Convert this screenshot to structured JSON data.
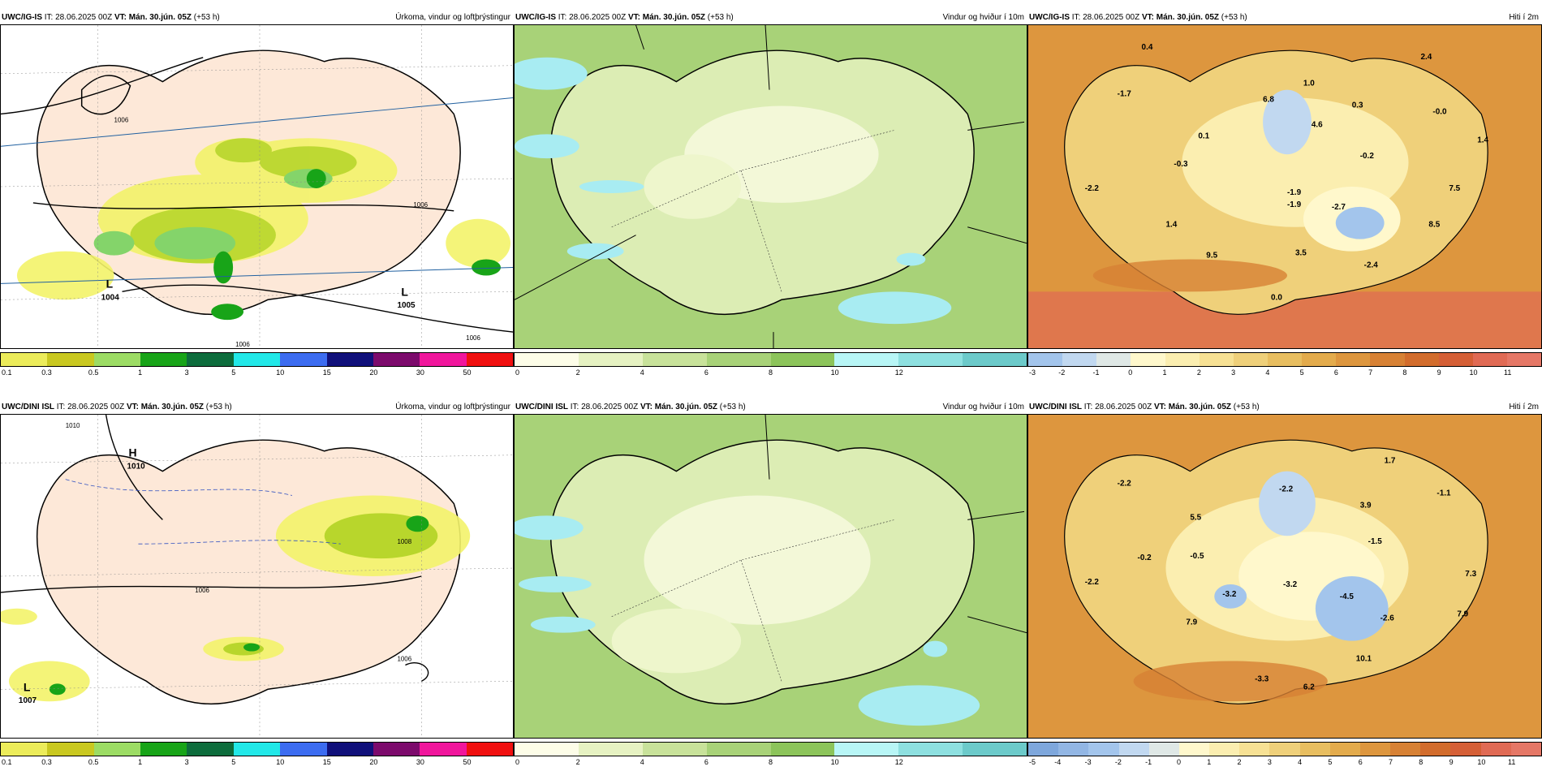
{
  "rows": [
    {
      "model": "UWC/IG-IS",
      "it_label": "IT:",
      "it": "28.06.2025 00Z",
      "vt_label": "VT:",
      "vt": "Mán. 30.jún. 05Z",
      "lead": "(+53 h)",
      "precip_title": "Úrkoma, vindur og loftþrýstingur",
      "wind_title": "Vindur og hviður í 10m",
      "temp_title": "Hiti í 2m",
      "lows": [
        {
          "symbol": "L",
          "value": "1004"
        },
        {
          "symbol": "L",
          "value": "1005"
        }
      ],
      "isobars": [
        "1006",
        "1006",
        "1006",
        "1006"
      ],
      "temps": [
        "0.4",
        "2.4",
        "-1.7",
        "1.0",
        "6.8",
        "0.3",
        "-1.9",
        "4.6",
        "-0.0",
        "0.1",
        "1.4",
        "-0.3",
        "-0.2",
        "-2.2",
        "-1.9",
        "7.5",
        "-2.7",
        "1.4",
        "8.5",
        "3.5",
        "9.5",
        "-2.4",
        "0.0"
      ],
      "temp_ticks": [
        "-3",
        "-2",
        "-1",
        "0",
        "1",
        "2",
        "3",
        "4",
        "5",
        "6",
        "7",
        "8",
        "9",
        "10",
        "11"
      ],
      "temp_colors": [
        "#a3c5ec",
        "#c1d8f0",
        "#dfe8e6",
        "#fff8cc",
        "#fbeeb0",
        "#f7e194",
        "#efd07a",
        "#e8be60",
        "#e3ab4c",
        "#dd963e",
        "#d78134",
        "#d26c2c",
        "#d55f36",
        "#e06a54",
        "#e57766"
      ]
    },
    {
      "model": "UWC/DINI ISL",
      "it_label": "IT:",
      "it": "28.06.2025 00Z",
      "vt_label": "VT:",
      "vt": "Mán. 30.jún. 05Z",
      "lead": "(+53 h)",
      "precip_title": "Úrkoma, vindur og loftþrýstingur",
      "wind_title": "Vindur og hviður í 10m",
      "temp_title": "Hiti í 2m",
      "lows": [
        {
          "symbol": "L",
          "value": "1007"
        }
      ],
      "highs": [
        {
          "symbol": "H",
          "value": "1010"
        }
      ],
      "isobars": [
        "1010",
        "1008",
        "1006",
        "1006"
      ],
      "temps": [
        "1.7",
        "-2.2",
        "-2.2",
        "-1.1",
        "3.9",
        "5.5",
        "-1.5",
        "-0.5",
        "-0.2",
        "-2.2",
        "-3.2",
        "-3.2",
        "-4.5",
        "7.3",
        "-2.6",
        "7.9",
        "7.9",
        "10.1",
        "-3.3",
        "6.2"
      ],
      "temp_ticks": [
        "-5",
        "-4",
        "-3",
        "-2",
        "-1",
        "0",
        "1",
        "2",
        "3",
        "4",
        "5",
        "6",
        "7",
        "8",
        "9",
        "10",
        "11"
      ],
      "temp_colors": [
        "#7ea7dc",
        "#92b6e4",
        "#a3c5ec",
        "#c1d8f0",
        "#dfe8e6",
        "#fff8cc",
        "#fbeeb0",
        "#f7e194",
        "#efd07a",
        "#e8be60",
        "#e3ab4c",
        "#dd963e",
        "#d78134",
        "#d26c2c",
        "#d55f36",
        "#e06a54",
        "#e57766"
      ]
    }
  ],
  "precip_ticks": [
    "0.1",
    "0.3",
    "0.5",
    "1",
    "3",
    "5",
    "10",
    "15",
    "20",
    "30",
    "50"
  ],
  "precip_colors": [
    "#ecec5a",
    "#c9c820",
    "#9cdc64",
    "#18a418",
    "#0d6c3c",
    "#22e8e8",
    "#3c6cf0",
    "#10107a",
    "#7c0a6c",
    "#f0169c",
    "#f01010"
  ],
  "wind_ticks": [
    "0",
    "2",
    "4",
    "6",
    "8",
    "10",
    "12"
  ],
  "wind_colors": [
    "#fdfde8",
    "#e6f2c2",
    "#c8e29a",
    "#a8d278",
    "#8cc45a",
    "#b8f6f6",
    "#8ee0e0",
    "#6ccaca"
  ]
}
